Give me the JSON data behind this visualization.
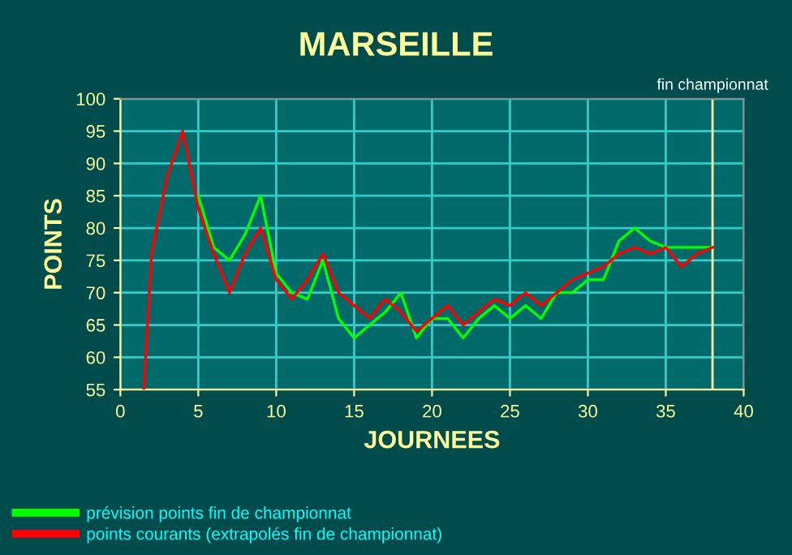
{
  "chart_data": {
    "type": "line",
    "title": "MARSEILLE",
    "xlabel": "JOURNEES",
    "ylabel": "POINTS",
    "xlim": [
      0,
      40
    ],
    "xticks": [
      0,
      5,
      10,
      15,
      20,
      25,
      30,
      35,
      40
    ],
    "ylim": [
      55,
      100
    ],
    "yticks": [
      55,
      60,
      65,
      70,
      75,
      80,
      85,
      90,
      95,
      100
    ],
    "grid": true,
    "legend": "bottom left",
    "ref_lines": [
      {
        "axis": "x",
        "value": 38,
        "label": "fin championnat",
        "color": "#ffff99"
      }
    ],
    "series": [
      {
        "name": "prévision points fin de championnat",
        "color": "#00ff00",
        "x": [
          5,
          6,
          7,
          8,
          9,
          10,
          11,
          12,
          13,
          14,
          15,
          16,
          17,
          18,
          19,
          20,
          21,
          22,
          23,
          24,
          25,
          26,
          27,
          28,
          29,
          30,
          31,
          32,
          33,
          34,
          35,
          36,
          37,
          38
        ],
        "values": [
          85,
          77,
          75,
          79,
          85,
          73,
          70,
          69,
          75,
          66,
          63,
          65,
          67,
          70,
          63,
          66,
          66,
          63,
          66,
          68,
          66,
          68,
          66,
          70,
          70,
          72,
          72,
          78,
          80,
          78,
          77,
          77,
          77,
          77
        ]
      },
      {
        "name": "points courants (extrapolés fin de championnat)",
        "color": "#ff0000",
        "x": [
          1.5,
          2,
          3,
          4,
          5,
          6,
          7,
          8,
          9,
          10,
          11,
          12,
          13,
          14,
          15,
          16,
          17,
          18,
          19,
          20,
          21,
          22,
          23,
          24,
          25,
          26,
          27,
          28,
          29,
          30,
          31,
          32,
          33,
          34,
          35,
          36,
          37,
          38
        ],
        "values": [
          55,
          76,
          88,
          95,
          83,
          76,
          70,
          76,
          80,
          72,
          69,
          72,
          76,
          70,
          68,
          66,
          69,
          67,
          64,
          66,
          68,
          65,
          67,
          69,
          68,
          70,
          68,
          70,
          72,
          73,
          74,
          76,
          77,
          76,
          77,
          74,
          76,
          77
        ]
      }
    ]
  }
}
